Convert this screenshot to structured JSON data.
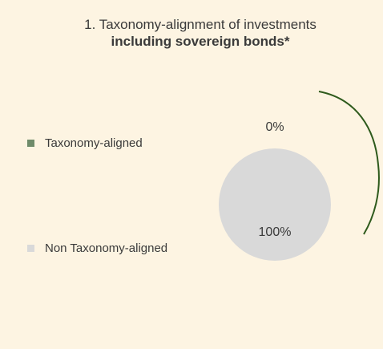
{
  "title": {
    "line1": "1. Taxonomy-alignment of investments",
    "line2": "including sovereign bonds*"
  },
  "colors": {
    "background": "#fdf4e2",
    "aligned": "#2e5a1c",
    "aligned_swatch": "#6f8b6a",
    "non_aligned": "#d9d9d9"
  },
  "chart_data": {
    "type": "pie",
    "title": "1. Taxonomy-alignment of investments including sovereign bonds*",
    "legend_position": "left",
    "slices": [
      {
        "label": "Taxonomy-aligned",
        "value": 0,
        "data_label": "0%"
      },
      {
        "label": "Non Taxonomy-aligned",
        "value": 100,
        "data_label": "100%"
      }
    ]
  }
}
